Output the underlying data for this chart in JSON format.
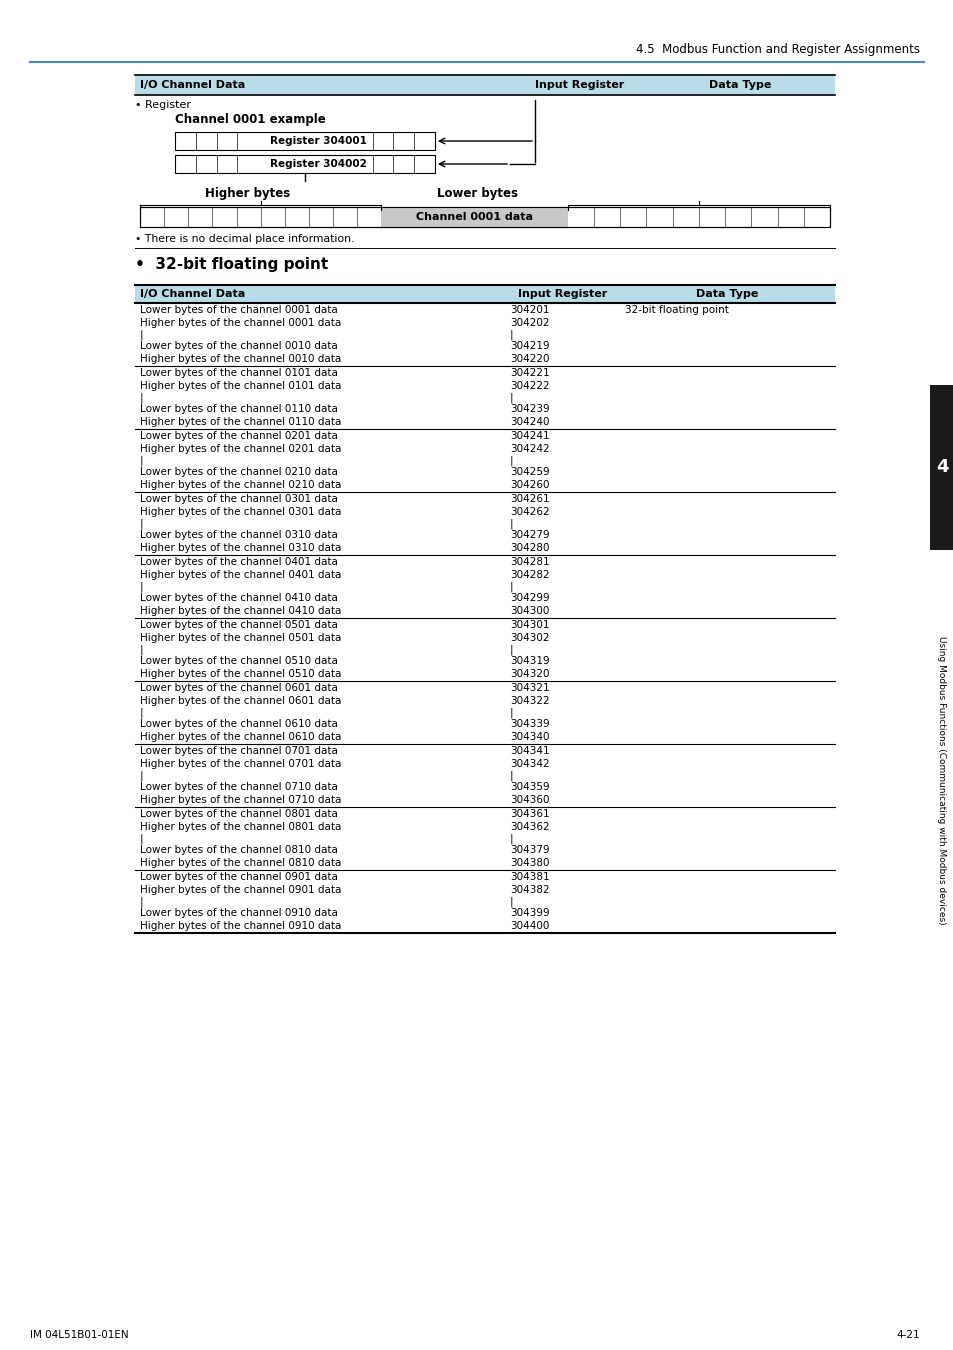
{
  "page_header": "4.5  Modbus Function and Register Assignments",
  "chapter_num": "4",
  "chapter_label": "Using Modbus Functions (Communicating with Modbus devices)",
  "footer_left": "IM 04L51B01-01EN",
  "footer_right": "4-21",
  "top_table_header": [
    "I/O Channel Data",
    "Input Register",
    "Data Type"
  ],
  "top_table_note": "• Register",
  "top_table_example_label": "Channel 0001 example",
  "top_table_reg1": "Register 304001",
  "top_table_reg2": "Register 304002",
  "top_table_higher": "Higher bytes",
  "top_table_lower": "Lower bytes",
  "top_table_channel": "Channel 0001 data",
  "bottom_note": "• There is no decimal place information.",
  "section_title": "•  32-bit floating point",
  "main_table_header": [
    "I/O Channel Data",
    "Input Register",
    "Data Type"
  ],
  "table_rows": [
    [
      "Lower bytes of the channel 0001 data",
      "304201",
      "32-bit floating point"
    ],
    [
      "Higher bytes of the channel 0001 data",
      "304202",
      ""
    ],
    [
      "|",
      "|",
      ""
    ],
    [
      "Lower bytes of the channel 0010 data",
      "304219",
      ""
    ],
    [
      "Higher bytes of the channel 0010 data",
      "304220",
      ""
    ],
    [
      "Lower bytes of the channel 0101 data",
      "304221",
      ""
    ],
    [
      "Higher bytes of the channel 0101 data",
      "304222",
      ""
    ],
    [
      "|",
      "|",
      ""
    ],
    [
      "Lower bytes of the channel 0110 data",
      "304239",
      ""
    ],
    [
      "Higher bytes of the channel 0110 data",
      "304240",
      ""
    ],
    [
      "Lower bytes of the channel 0201 data",
      "304241",
      ""
    ],
    [
      "Higher bytes of the channel 0201 data",
      "304242",
      ""
    ],
    [
      "|",
      "|",
      ""
    ],
    [
      "Lower bytes of the channel 0210 data",
      "304259",
      ""
    ],
    [
      "Higher bytes of the channel 0210 data",
      "304260",
      ""
    ],
    [
      "Lower bytes of the channel 0301 data",
      "304261",
      ""
    ],
    [
      "Higher bytes of the channel 0301 data",
      "304262",
      ""
    ],
    [
      "|",
      "|",
      ""
    ],
    [
      "Lower bytes of the channel 0310 data",
      "304279",
      ""
    ],
    [
      "Higher bytes of the channel 0310 data",
      "304280",
      ""
    ],
    [
      "Lower bytes of the channel 0401 data",
      "304281",
      ""
    ],
    [
      "Higher bytes of the channel 0401 data",
      "304282",
      ""
    ],
    [
      "|",
      "|",
      ""
    ],
    [
      "Lower bytes of the channel 0410 data",
      "304299",
      ""
    ],
    [
      "Higher bytes of the channel 0410 data",
      "304300",
      ""
    ],
    [
      "Lower bytes of the channel 0501 data",
      "304301",
      ""
    ],
    [
      "Higher bytes of the channel 0501 data",
      "304302",
      ""
    ],
    [
      "|",
      "|",
      ""
    ],
    [
      "Lower bytes of the channel 0510 data",
      "304319",
      ""
    ],
    [
      "Higher bytes of the channel 0510 data",
      "304320",
      ""
    ],
    [
      "Lower bytes of the channel 0601 data",
      "304321",
      ""
    ],
    [
      "Higher bytes of the channel 0601 data",
      "304322",
      ""
    ],
    [
      "|",
      "|",
      ""
    ],
    [
      "Lower bytes of the channel 0610 data",
      "304339",
      ""
    ],
    [
      "Higher bytes of the channel 0610 data",
      "304340",
      ""
    ],
    [
      "Lower bytes of the channel 0701 data",
      "304341",
      ""
    ],
    [
      "Higher bytes of the channel 0701 data",
      "304342",
      ""
    ],
    [
      "|",
      "|",
      ""
    ],
    [
      "Lower bytes of the channel 0710 data",
      "304359",
      ""
    ],
    [
      "Higher bytes of the channel 0710 data",
      "304360",
      ""
    ],
    [
      "Lower bytes of the channel 0801 data",
      "304361",
      ""
    ],
    [
      "Higher bytes of the channel 0801 data",
      "304362",
      ""
    ],
    [
      "|",
      "|",
      ""
    ],
    [
      "Lower bytes of the channel 0810 data",
      "304379",
      ""
    ],
    [
      "Higher bytes of the channel 0810 data",
      "304380",
      ""
    ],
    [
      "Lower bytes of the channel 0901 data",
      "304381",
      ""
    ],
    [
      "Higher bytes of the channel 0901 data",
      "304382",
      ""
    ],
    [
      "|",
      "|",
      ""
    ],
    [
      "Lower bytes of the channel 0910 data",
      "304399",
      ""
    ],
    [
      "Higher bytes of the channel 0910 data",
      "304400",
      ""
    ]
  ],
  "header_bg": "#b8dce8",
  "line_color": "#000000",
  "text_color": "#000000",
  "bg_color": "#ffffff",
  "tab_bg": "#1a1a1a",
  "tab_text": "#ffffff",
  "header_line": "#4a86c8"
}
